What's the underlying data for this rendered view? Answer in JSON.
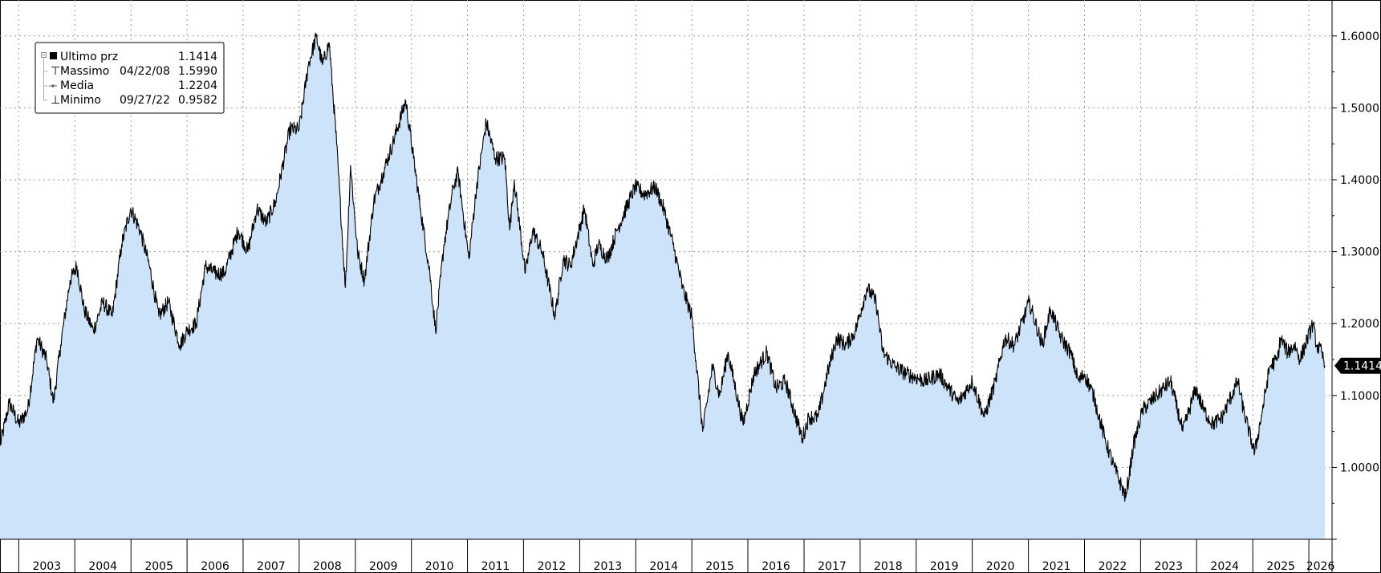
{
  "chart_data": {
    "type": "area",
    "title": "",
    "xlabel": "",
    "ylabel": "",
    "x_axis": {
      "type": "time",
      "range": [
        "2002-09-01",
        "2026-06-01"
      ],
      "tick_labels": [
        "2003",
        "2004",
        "2005",
        "2006",
        "2007",
        "2008",
        "2009",
        "2010",
        "2011",
        "2012",
        "2013",
        "2014",
        "2015",
        "2016",
        "2017",
        "2018",
        "2019",
        "2020",
        "2021",
        "2022",
        "2023",
        "2024",
        "2025",
        "2026"
      ]
    },
    "y_axis": {
      "position": "right",
      "range": [
        0.9,
        1.65
      ],
      "tick_labels": [
        "1.0000",
        "1.1000",
        "1.2000",
        "1.3000",
        "1.4000",
        "1.5000",
        "1.6000"
      ]
    },
    "grid": true,
    "legend_placement": "top-left",
    "colors": {
      "fill": "#cce3fa",
      "line": "#000000",
      "grid": "#9a9a9a",
      "last_label_bg": "#000000"
    },
    "legend": [
      {
        "icon": "filled-square-icon",
        "name": "Ultimo prz",
        "date": "",
        "value": "1.1414"
      },
      {
        "icon": "high-marker-icon",
        "name": "Massimo",
        "date": "04/22/08",
        "value": "1.5990"
      },
      {
        "icon": "average-marker-icon",
        "name": "Media",
        "date": "",
        "value": "1.2204"
      },
      {
        "icon": "low-marker-icon",
        "name": "Minimo",
        "date": "09/27/22",
        "value": "0.9582"
      }
    ],
    "last_value_label": "1.1414",
    "series": [
      {
        "points": [
          [
            "2002-09-01",
            1.03
          ],
          [
            "2002-11-01",
            1.09
          ],
          [
            "2003-01-01",
            1.06
          ],
          [
            "2003-03-01",
            1.08
          ],
          [
            "2003-05-01",
            1.18
          ],
          [
            "2003-07-01",
            1.15
          ],
          [
            "2003-08-15",
            1.09
          ],
          [
            "2003-10-01",
            1.17
          ],
          [
            "2003-12-01",
            1.26
          ],
          [
            "2004-01-15",
            1.28
          ],
          [
            "2004-03-01",
            1.22
          ],
          [
            "2004-05-01",
            1.19
          ],
          [
            "2004-07-01",
            1.23
          ],
          [
            "2004-09-01",
            1.21
          ],
          [
            "2004-11-01",
            1.31
          ],
          [
            "2004-12-30",
            1.36
          ],
          [
            "2005-03-01",
            1.33
          ],
          [
            "2005-05-01",
            1.28
          ],
          [
            "2005-07-01",
            1.21
          ],
          [
            "2005-09-01",
            1.23
          ],
          [
            "2005-11-15",
            1.17
          ],
          [
            "2006-01-01",
            1.19
          ],
          [
            "2006-03-01",
            1.2
          ],
          [
            "2006-05-01",
            1.28
          ],
          [
            "2006-07-01",
            1.27
          ],
          [
            "2006-09-01",
            1.27
          ],
          [
            "2006-12-01",
            1.33
          ],
          [
            "2007-02-01",
            1.3
          ],
          [
            "2007-04-01",
            1.36
          ],
          [
            "2007-06-01",
            1.34
          ],
          [
            "2007-08-01",
            1.37
          ],
          [
            "2007-11-01",
            1.47
          ],
          [
            "2008-01-01",
            1.47
          ],
          [
            "2008-03-01",
            1.56
          ],
          [
            "2008-04-22",
            1.599
          ],
          [
            "2008-06-01",
            1.56
          ],
          [
            "2008-07-15",
            1.59
          ],
          [
            "2008-09-01",
            1.45
          ],
          [
            "2008-10-28",
            1.25
          ],
          [
            "2008-12-01",
            1.42
          ],
          [
            "2009-01-15",
            1.3
          ],
          [
            "2009-03-01",
            1.26
          ],
          [
            "2009-05-01",
            1.37
          ],
          [
            "2009-07-01",
            1.41
          ],
          [
            "2009-09-01",
            1.45
          ],
          [
            "2009-11-25",
            1.51
          ],
          [
            "2010-01-15",
            1.43
          ],
          [
            "2010-03-01",
            1.36
          ],
          [
            "2010-05-01",
            1.27
          ],
          [
            "2010-06-07",
            1.19
          ],
          [
            "2010-08-01",
            1.31
          ],
          [
            "2010-10-01",
            1.39
          ],
          [
            "2010-11-01",
            1.41
          ],
          [
            "2011-01-10",
            1.29
          ],
          [
            "2011-03-01",
            1.39
          ],
          [
            "2011-05-03",
            1.48
          ],
          [
            "2011-07-01",
            1.43
          ],
          [
            "2011-09-01",
            1.43
          ],
          [
            "2011-10-03",
            1.33
          ],
          [
            "2011-11-01",
            1.4
          ],
          [
            "2012-01-13",
            1.27
          ],
          [
            "2012-03-01",
            1.33
          ],
          [
            "2012-05-01",
            1.3
          ],
          [
            "2012-07-24",
            1.21
          ],
          [
            "2012-09-15",
            1.29
          ],
          [
            "2012-11-01",
            1.28
          ],
          [
            "2013-02-01",
            1.36
          ],
          [
            "2013-03-27",
            1.28
          ],
          [
            "2013-05-01",
            1.31
          ],
          [
            "2013-07-01",
            1.29
          ],
          [
            "2013-09-01",
            1.33
          ],
          [
            "2013-12-27",
            1.39
          ],
          [
            "2014-03-01",
            1.38
          ],
          [
            "2014-05-08",
            1.39
          ],
          [
            "2014-07-01",
            1.36
          ],
          [
            "2014-09-01",
            1.31
          ],
          [
            "2014-11-01",
            1.25
          ],
          [
            "2015-01-01",
            1.21
          ],
          [
            "2015-03-13",
            1.05
          ],
          [
            "2015-05-15",
            1.14
          ],
          [
            "2015-07-01",
            1.1
          ],
          [
            "2015-08-24",
            1.16
          ],
          [
            "2015-11-30",
            1.06
          ],
          [
            "2016-02-10",
            1.13
          ],
          [
            "2016-05-03",
            1.16
          ],
          [
            "2016-07-01",
            1.11
          ],
          [
            "2016-09-01",
            1.12
          ],
          [
            "2016-12-20",
            1.04
          ],
          [
            "2017-02-01",
            1.07
          ],
          [
            "2017-04-01",
            1.07
          ],
          [
            "2017-06-01",
            1.13
          ],
          [
            "2017-08-01",
            1.18
          ],
          [
            "2017-10-01",
            1.17
          ],
          [
            "2017-12-01",
            1.19
          ],
          [
            "2018-02-15",
            1.25
          ],
          [
            "2018-04-15",
            1.23
          ],
          [
            "2018-05-29",
            1.16
          ],
          [
            "2018-08-15",
            1.14
          ],
          [
            "2018-11-01",
            1.13
          ],
          [
            "2019-03-01",
            1.12
          ],
          [
            "2019-06-01",
            1.13
          ],
          [
            "2019-08-01",
            1.11
          ],
          [
            "2019-10-01",
            1.09
          ],
          [
            "2020-01-01",
            1.12
          ],
          [
            "2020-03-20",
            1.07
          ],
          [
            "2020-06-01",
            1.12
          ],
          [
            "2020-07-31",
            1.18
          ],
          [
            "2020-10-01",
            1.17
          ],
          [
            "2021-01-06",
            1.23
          ],
          [
            "2021-03-31",
            1.17
          ],
          [
            "2021-05-25",
            1.22
          ],
          [
            "2021-08-01",
            1.18
          ],
          [
            "2021-10-01",
            1.16
          ],
          [
            "2021-11-24",
            1.12
          ],
          [
            "2022-01-01",
            1.13
          ],
          [
            "2022-03-01",
            1.1
          ],
          [
            "2022-05-13",
            1.04
          ],
          [
            "2022-07-14",
            1.0
          ],
          [
            "2022-09-27",
            0.9582
          ],
          [
            "2022-11-15",
            1.03
          ],
          [
            "2023-01-15",
            1.08
          ],
          [
            "2023-04-15",
            1.1
          ],
          [
            "2023-07-15",
            1.12
          ],
          [
            "2023-10-03",
            1.05
          ],
          [
            "2023-12-27",
            1.11
          ],
          [
            "2024-02-15",
            1.08
          ],
          [
            "2024-04-16",
            1.06
          ],
          [
            "2024-06-15",
            1.07
          ],
          [
            "2024-09-25",
            1.12
          ],
          [
            "2024-11-01",
            1.08
          ],
          [
            "2025-01-13",
            1.02
          ],
          [
            "2025-03-05",
            1.08
          ],
          [
            "2025-04-21",
            1.14
          ],
          [
            "2025-06-10",
            1.15
          ],
          [
            "2025-07-01",
            1.18
          ],
          [
            "2025-08-15",
            1.16
          ],
          [
            "2025-10-01",
            1.17
          ],
          [
            "2025-11-05",
            1.15
          ],
          [
            "2026-01-27",
            1.2
          ],
          [
            "2026-02-20",
            1.17
          ],
          [
            "2026-03-25",
            1.16
          ],
          [
            "2026-04-15",
            1.1414
          ]
        ]
      }
    ]
  }
}
